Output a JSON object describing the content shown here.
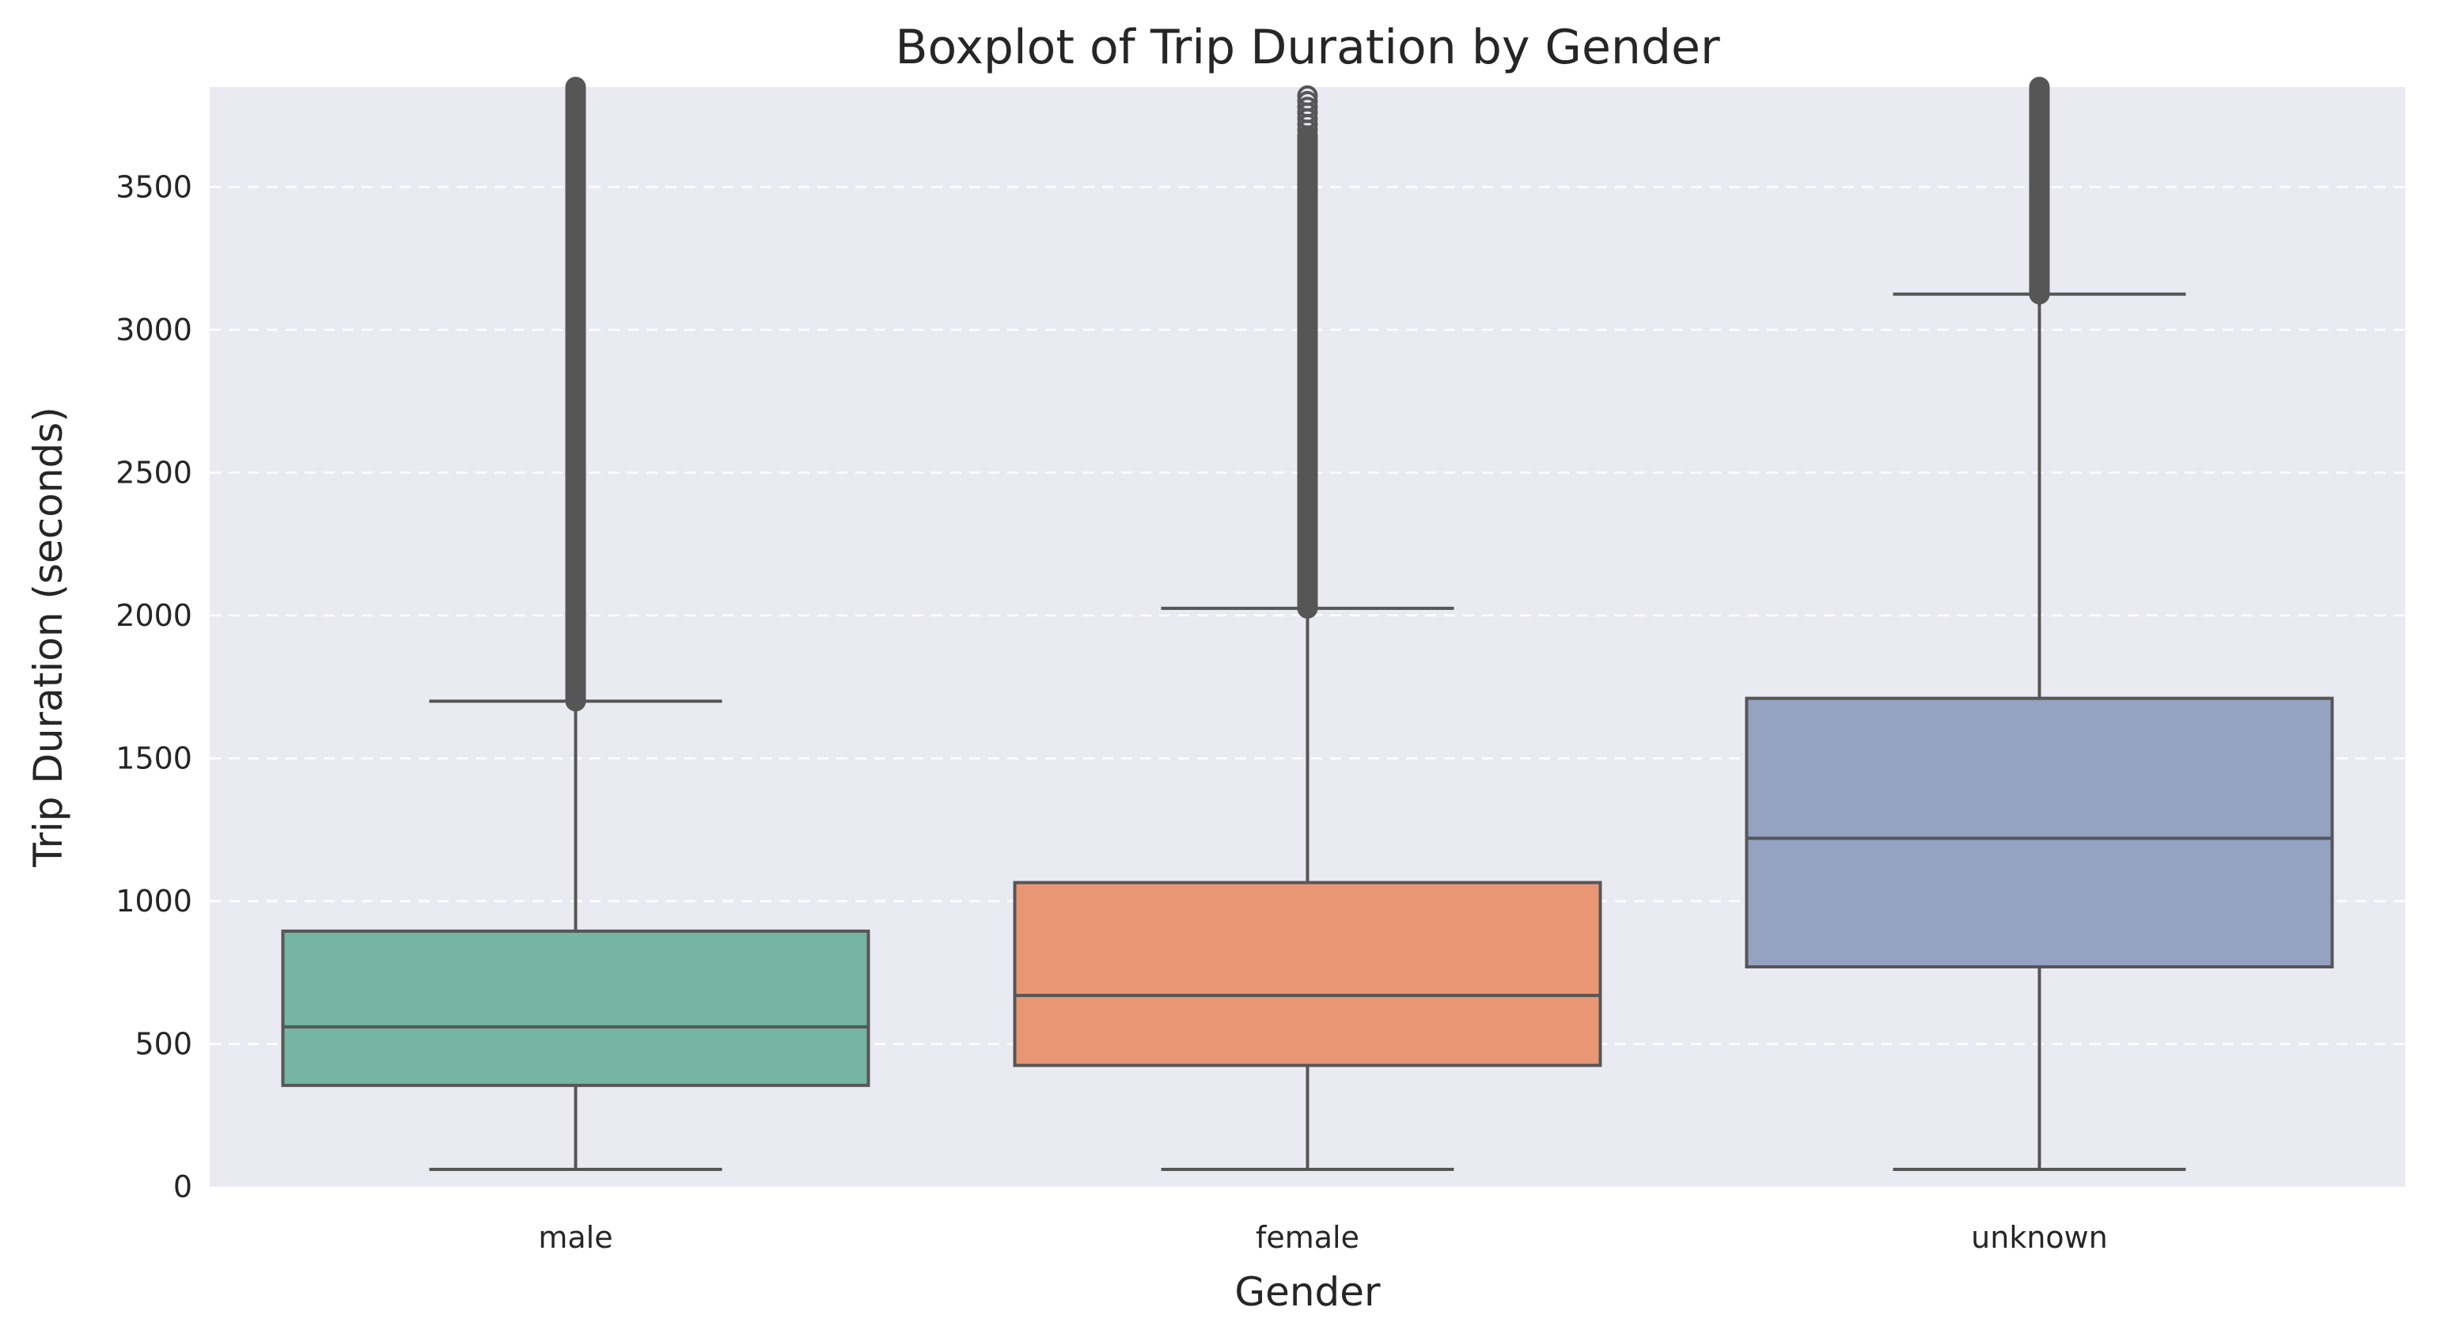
{
  "chart_data": {
    "type": "boxplot",
    "title": "Boxplot of Trip Duration by Gender",
    "xlabel": "Gender",
    "ylabel": "Trip Duration (seconds)",
    "categories": [
      "male",
      "female",
      "unknown"
    ],
    "ylim": [
      0,
      3850
    ],
    "yticks": [
      0,
      500,
      1000,
      1500,
      2000,
      2500,
      3000,
      3500
    ],
    "grid": "horizontal-dashed",
    "background": "#eaeaf2",
    "series": [
      {
        "category": "male",
        "color": "#75b5a1",
        "whisker_low": 61,
        "q1": 355,
        "median": 560,
        "q3": 895,
        "whisker_high": 1700,
        "outliers_from": 1700,
        "outliers_to": 3850
      },
      {
        "category": "female",
        "color": "#e99675",
        "whisker_low": 61,
        "q1": 425,
        "median": 670,
        "q3": 1065,
        "whisker_high": 2025,
        "outliers_from": 2025,
        "outliers_to": 3850,
        "sparse_outliers_above": 3680
      },
      {
        "category": "unknown",
        "color": "#94a3c1",
        "whisker_low": 61,
        "q1": 770,
        "median": 1220,
        "q3": 1710,
        "whisker_high": 3125,
        "outliers_from": 3125,
        "outliers_to": 3850
      }
    ]
  }
}
